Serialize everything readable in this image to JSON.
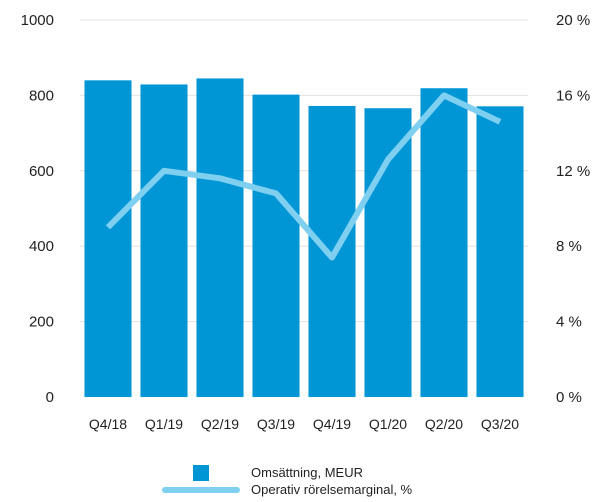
{
  "chart_data": {
    "type": "bar",
    "categories": [
      "Q4/18",
      "Q1/19",
      "Q2/19",
      "Q3/19",
      "Q4/19",
      "Q1/20",
      "Q2/20",
      "Q3/20"
    ],
    "series": [
      {
        "name": "Omsättning, MEUR",
        "type": "bar",
        "axis": "left",
        "color": "#0096d6",
        "values": [
          840,
          829,
          845,
          802,
          772,
          766,
          819,
          771
        ]
      },
      {
        "name": "Operativ rörelsemarginal, %",
        "type": "line",
        "axis": "right",
        "color": "#7fcff0",
        "values": [
          9.0,
          12.0,
          11.6,
          10.8,
          7.4,
          12.6,
          16.0,
          14.6
        ]
      }
    ],
    "y_left": {
      "lim": [
        0,
        1000
      ],
      "ticks": [
        "0",
        "200",
        "400",
        "600",
        "800",
        "1000"
      ]
    },
    "y_right": {
      "lim": [
        0,
        20
      ],
      "ticks": [
        "0 %",
        "4 %",
        "8 %",
        "12 %",
        "16 %",
        "20 %"
      ]
    },
    "grid": true,
    "legend_position": "bottom-center"
  }
}
